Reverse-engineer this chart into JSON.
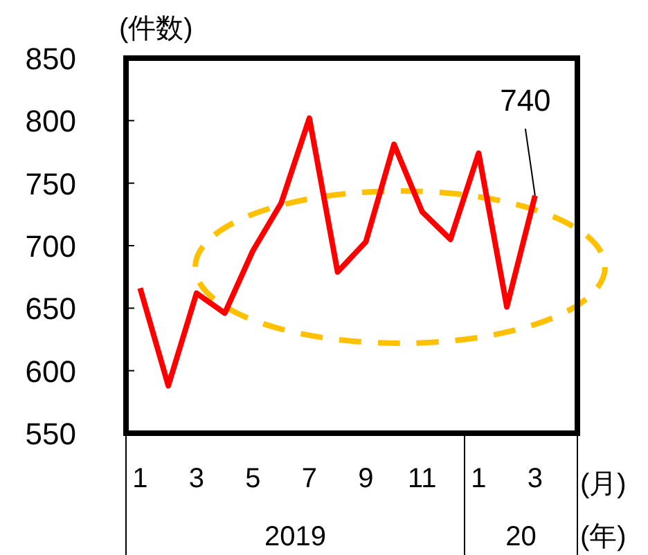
{
  "chart_data": {
    "type": "line",
    "ylabel": "(件数)",
    "xlabel": "(月)",
    "categories": [
      "1",
      null,
      "3",
      null,
      "5",
      null,
      "7",
      null,
      "9",
      null,
      "11",
      null,
      "1",
      null,
      "3",
      null
    ],
    "values": [
      666,
      588,
      662,
      646,
      696,
      734,
      802,
      679,
      703,
      781,
      727,
      705,
      774,
      651,
      740,
      null
    ],
    "value_labels": [
      null,
      null,
      null,
      null,
      null,
      null,
      null,
      null,
      null,
      null,
      null,
      null,
      null,
      null,
      "740",
      null
    ],
    "color": "#ff0000",
    "ylim": [
      550,
      850
    ],
    "yticks": [
      550,
      600,
      650,
      700,
      750,
      800,
      850
    ],
    "annotations": [
      "2019",
      "20",
      "(年)"
    ]
  }
}
